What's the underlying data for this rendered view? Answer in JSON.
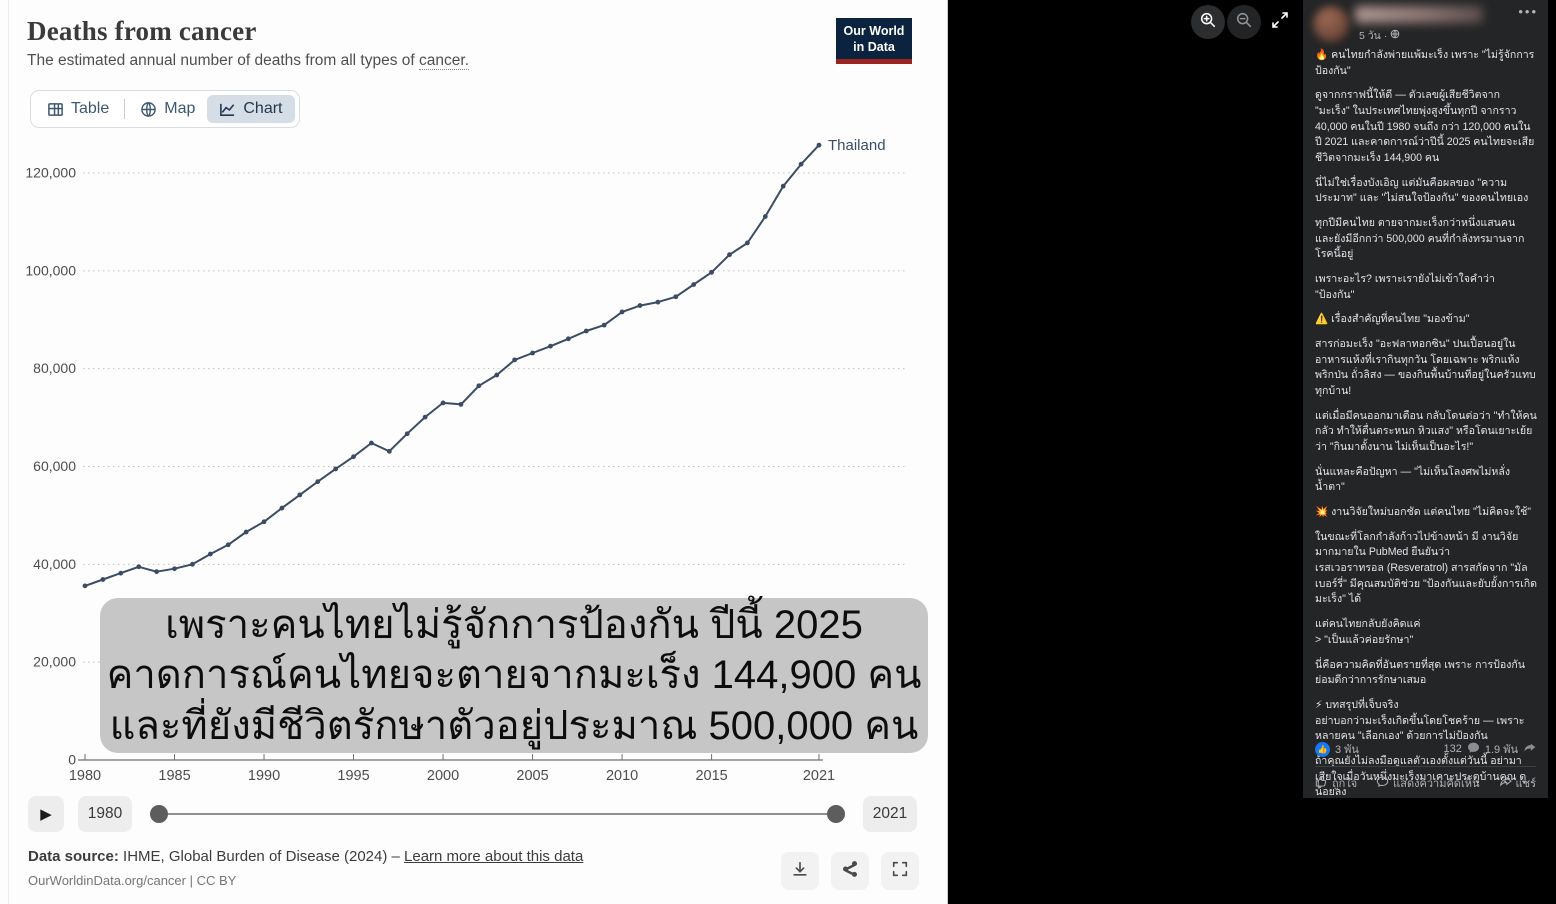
{
  "owid": {
    "title": "Deaths from cancer",
    "subtitle_prefix": "The estimated annual number of deaths from all types of ",
    "subtitle_link": "cancer.",
    "logo_line1": "Our World",
    "logo_line2": "in Data",
    "tabs": [
      {
        "label": "Table",
        "active": false
      },
      {
        "label": "Map",
        "active": false
      },
      {
        "label": "Chart",
        "active": true
      }
    ],
    "timeline": {
      "play_icon": "▶",
      "start_year": "1980",
      "end_year": "2021"
    },
    "footer": {
      "source_label": "Data source:",
      "source_text": " IHME, Global Burden of Disease (2024) – ",
      "source_link": "Learn more about this data",
      "license": "OurWorldinData.org/cancer | CC BY"
    },
    "colors": {
      "line": "#3b4c63",
      "owid_navy": "#0c2340",
      "owid_red": "#9c2420",
      "overlay_bg": "#c6c6c6",
      "like_blue": "#1877f2"
    }
  },
  "overlay": {
    "lines": [
      "เพราะคนไทยไม่รู้จักการป้องกัน ปีนี้ 2025",
      "คาดการณ์คนไทยจะตายจากมะเร็ง 144,900 คน",
      "และที่ยังมีชีวิตรักษาตัวอยู่ประมาณ 500,000 คน"
    ]
  },
  "chart_data": {
    "type": "line",
    "title": "Deaths from cancer",
    "entity_label": "Thailand",
    "xlabel": "",
    "ylabel": "",
    "ylim": [
      0,
      130000
    ],
    "yticks": [
      0,
      20000,
      40000,
      60000,
      80000,
      100000,
      120000
    ],
    "xticks": [
      1980,
      1985,
      1990,
      1995,
      2000,
      2005,
      2010,
      2015,
      2021
    ],
    "grid": "dotted",
    "x": [
      1980,
      1981,
      1982,
      1983,
      1984,
      1985,
      1986,
      1987,
      1988,
      1989,
      1990,
      1991,
      1992,
      1993,
      1994,
      1995,
      1996,
      1997,
      1998,
      1999,
      2000,
      2001,
      2002,
      2003,
      2004,
      2005,
      2006,
      2007,
      2008,
      2009,
      2010,
      2011,
      2012,
      2013,
      2014,
      2015,
      2016,
      2017,
      2018,
      2019,
      2020,
      2021
    ],
    "series": [
      {
        "name": "Thailand",
        "values": [
          35600,
          36900,
          38200,
          39500,
          38500,
          39100,
          40000,
          42100,
          44000,
          46600,
          48700,
          51500,
          54200,
          56900,
          59500,
          62000,
          64800,
          63100,
          66700,
          70100,
          73000,
          72700,
          76500,
          78700,
          81800,
          83200,
          84600,
          86100,
          87700,
          88900,
          91600,
          92900,
          93600,
          94700,
          97200,
          99700,
          103300,
          105700,
          111100,
          117300,
          121800,
          125700
        ]
      }
    ]
  },
  "post": {
    "timestamp": "5 วัน",
    "more_label": "•••",
    "paragraphs": [
      "🔥 คนไทยกำลังพ่ายแพ้มะเร็ง เพราะ \"ไม่รู้จักการป้องกัน\"",
      "ดูจากกราฟนี้ให้ดี — ตัวเลขผู้เสียชีวิตจาก \"มะเร็ง\" ในประเทศไทยพุ่งสูงขึ้นทุกปี จากราว 40,000 คนในปี 1980 จนถึง กว่า 120,000 คนในปี 2021 และคาดการณ์ว่าปีนี้ 2025 คนไทยจะเสียชีวิตจากมะเร็ง 144,900 คน",
      "นี่ไม่ใช่เรื่องบังเอิญ แต่มันคือผลของ \"ความประมาท\" และ \"ไม่สนใจป้องกัน\" ของคนไทยเอง",
      "ทุกปีมีคนไทย ตายจากมะเร็งกว่าหนึ่งแสนคน และยังมีอีกกว่า 500,000 คนที่กำลังทรมานจากโรคนี้อยู่",
      "เพราะอะไร? เพราะเรายังไม่เข้าใจคำว่า \"ป้องกัน\"",
      "⚠️ เรื่องสำคัญที่คนไทย \"มองข้าม\"",
      "สารก่อมะเร็ง \"อะฟลาทอกซิน\" ปนเปื้อนอยู่ในอาหารแห้งที่เรากินทุกวัน โดยเฉพาะ พริกแห้ง พริกป่น ถั่วลิสง — ของกินพื้นบ้านที่อยู่ในครัวแทบทุกบ้าน!",
      "แต่เมื่อมีคนออกมาเตือน กลับโดนต่อว่า \"ทำให้คนกลัว ทำให้ตื่นตระหนก หิวแสง\" หรือโดนเยาะเย้ยว่า \"กินมาตั้งนาน ไม่เห็นเป็นอะไร!\"",
      "นั่นแหละคือปัญหา — \"ไม่เห็นโลงศพไม่หลั่งน้ำตา\"",
      "💥 งานวิจัยใหม่บอกชัด แต่คนไทย \"ไม่คิดจะใช้\"",
      "ในขณะที่โลกกำลังก้าวไปข้างหน้า มี งานวิจัยมากมายใน PubMed ยืนยันว่า\nเรสเวอราทรอล (Resveratrol) สารสกัดจาก \"มัลเบอร์รี่\" มีคุณสมบัติช่วย \"ป้องกันและยับยั้งการเกิดมะเร็ง\" ได้",
      "แต่คนไทยกลับยังคิดแค่\n> \"เป็นแล้วค่อยรักษา\"",
      "นี่คือความคิดที่อันตรายที่สุด เพราะ การป้องกันย่อมดีกว่าการรักษาเสมอ",
      "⚡ บทสรุปที่เจ็บจริง\nอย่าบอกว่ามะเร็งเกิดขึ้นโดยโชคร้าย — เพราะหลายคน \"เลือกเอง\" ด้วยการไม่ป้องกัน",
      "ถ้าคุณยังไม่ลงมือดูแลตัวเองตั้งแต่วันนี้ อย่ามาเสียใจเมื่อวันหนึ่งมะเร็งมาเคาะประตูบ้านคุณ ดูน้อยลง"
    ],
    "engagement": {
      "likes": "3 พัน",
      "comments": "132",
      "shares": "1.9 พัน"
    },
    "actions": [
      {
        "label": "ถูกใจ"
      },
      {
        "label": "แสดงความคิดเห็น"
      },
      {
        "label": "แชร์"
      }
    ]
  }
}
